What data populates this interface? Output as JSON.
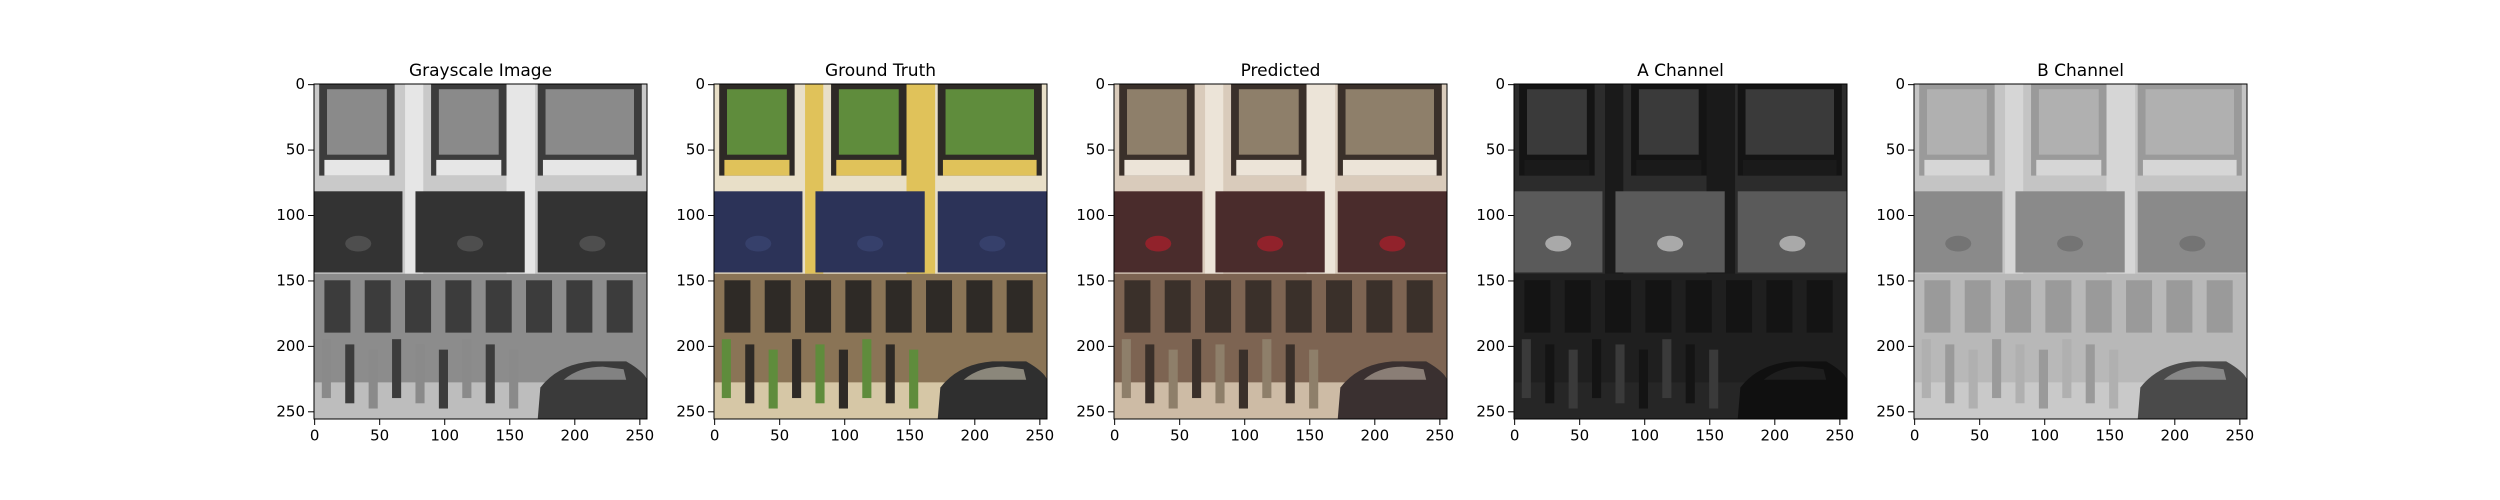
{
  "panels": [
    {
      "title": "Grayscale Image",
      "xlim": [
        -0.5,
        255.5
      ],
      "ylim": [
        255.5,
        -0.5
      ],
      "xticks": [
        0,
        50,
        100,
        150,
        200,
        250
      ],
      "yticks": [
        0,
        50,
        100,
        150,
        200,
        250
      ]
    },
    {
      "title": "Ground Truth",
      "xlim": [
        -0.5,
        255.5
      ],
      "ylim": [
        255.5,
        -0.5
      ],
      "xticks": [
        0,
        50,
        100,
        150,
        200,
        250
      ],
      "yticks": [
        0,
        50,
        100,
        150,
        200,
        250
      ]
    },
    {
      "title": "Predicted",
      "xlim": [
        -0.5,
        255.5
      ],
      "ylim": [
        255.5,
        -0.5
      ],
      "xticks": [
        0,
        50,
        100,
        150,
        200,
        250
      ],
      "yticks": [
        0,
        50,
        100,
        150,
        200,
        250
      ]
    },
    {
      "title": "A Channel",
      "xlim": [
        -0.5,
        255.5
      ],
      "ylim": [
        255.5,
        -0.5
      ],
      "xticks": [
        0,
        50,
        100,
        150,
        200,
        250
      ],
      "yticks": [
        0,
        50,
        100,
        150,
        200,
        250
      ]
    },
    {
      "title": "B Channel",
      "xlim": [
        -0.5,
        255.5
      ],
      "ylim": [
        255.5,
        -0.5
      ],
      "xticks": [
        0,
        50,
        100,
        150,
        200,
        250
      ],
      "yticks": [
        0,
        50,
        100,
        150,
        200,
        250
      ]
    }
  ]
}
